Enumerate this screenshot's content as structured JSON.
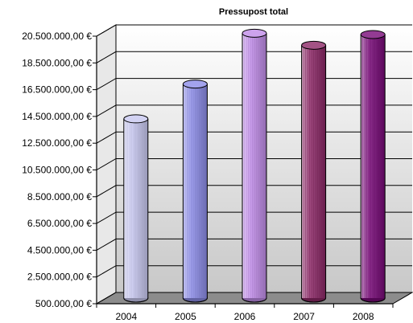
{
  "chart_data": {
    "type": "bar",
    "title": "Pressupost total",
    "xlabel": "",
    "ylabel": "",
    "categories": [
      "2004",
      "2005",
      "2006",
      "2007",
      "2008"
    ],
    "values": [
      13900000,
      16500000,
      20300000,
      19400000,
      20200000
    ],
    "ylim": [
      500000,
      20500000
    ],
    "y_ticks": [
      "500.000,00 €",
      "2.500.000,00 €",
      "4.500.000,00 €",
      "6.500.000,00 €",
      "8.500.000,00 €",
      "10.500.000,00 €",
      "12.500.000,00 €",
      "14.500.000,00 €",
      "16.500.000,00 €",
      "18.500.000,00 €",
      "20.500.000,00 €"
    ],
    "y_tick_values": [
      500000,
      2500000,
      4500000,
      6500000,
      8500000,
      10500000,
      12500000,
      14500000,
      16500000,
      18500000,
      20500000
    ],
    "bar_colors": [
      "#c8c8f0",
      "#8c8ce8",
      "#c08ce8",
      "#8c2866",
      "#780a78"
    ],
    "grid": true,
    "legend": "none"
  }
}
